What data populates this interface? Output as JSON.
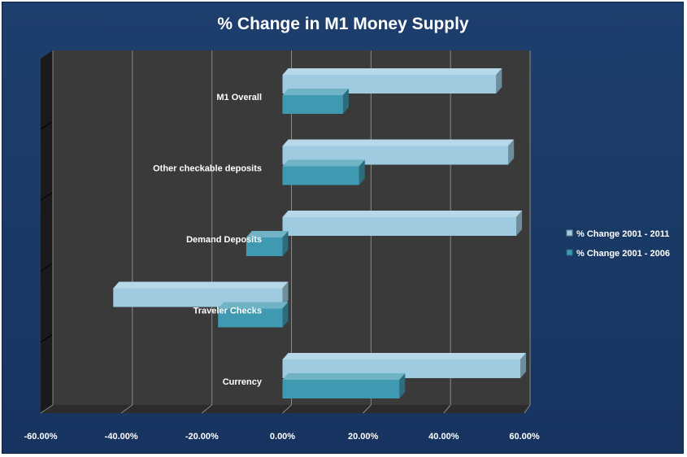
{
  "chart_data": {
    "type": "bar",
    "orientation": "horizontal",
    "title": "% Change in M1 Money Supply",
    "categories": [
      "M1 Overall",
      "Other checkable deposits",
      "Demand Deposits",
      "Traveler Checks",
      "Currency"
    ],
    "series": [
      {
        "name": "% Change 2001 - 2011",
        "values": [
          53,
          56,
          58,
          -42,
          59
        ],
        "color": "#9ecbe0"
      },
      {
        "name": "% Change 2001 - 2006",
        "values": [
          15,
          19,
          -9,
          -16,
          29
        ],
        "color": "#3f9ab1"
      }
    ],
    "xlim": [
      -60,
      60
    ],
    "xticks": [
      -60,
      -40,
      -20,
      0,
      20,
      40,
      60
    ],
    "tick_labels": [
      "-60.00%",
      "-40.00%",
      "-20.00%",
      "0.00%",
      "20.00%",
      "40.00%",
      "60.00%"
    ],
    "grid": true,
    "legend_position": "right"
  },
  "colors": {
    "background": "#1b3b68",
    "plot_back": "#3a3a3a",
    "plot_left_wall": "#1a1a1a",
    "plot_floor": "#2c2c2c",
    "gridline": "#8a8a8a"
  }
}
